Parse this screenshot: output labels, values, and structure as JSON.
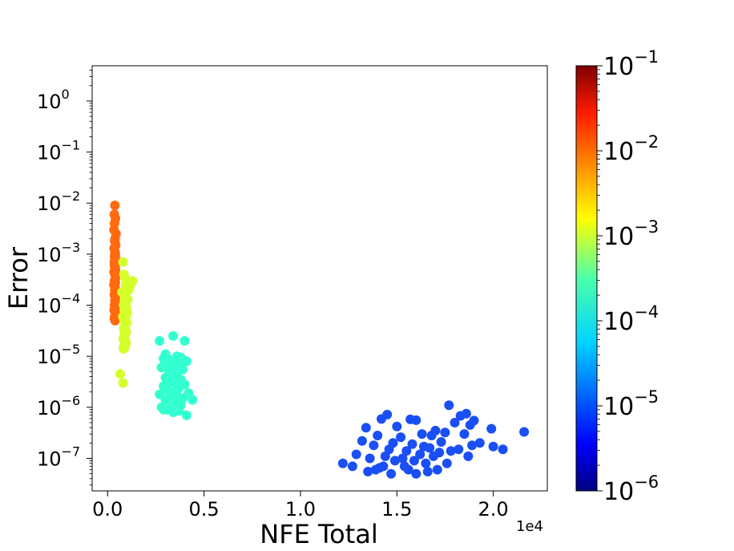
{
  "chart_data": {
    "type": "scatter",
    "xlabel": "NFE Total",
    "ylabel": "Error",
    "x_offset_label": "1e4",
    "xlim": [
      -0.08,
      2.28
    ],
    "ylim": [
      2.31e-08,
      4.9
    ],
    "yscale": "log",
    "grid": false,
    "x_ticks": [
      {
        "value": 0.0,
        "label": "0.0"
      },
      {
        "value": 0.5,
        "label": "0.5"
      },
      {
        "value": 1.0,
        "label": "1.0"
      },
      {
        "value": 1.5,
        "label": "1.5"
      },
      {
        "value": 2.0,
        "label": "2.0"
      }
    ],
    "y_ticks": [
      {
        "exp": 0,
        "base": "10",
        "sup": "0"
      },
      {
        "exp": -1,
        "base": "10",
        "sup": "−1"
      },
      {
        "exp": -2,
        "base": "10",
        "sup": "−2"
      },
      {
        "exp": -3,
        "base": "10",
        "sup": "−3"
      },
      {
        "exp": -4,
        "base": "10",
        "sup": "−4"
      },
      {
        "exp": -5,
        "base": "10",
        "sup": "−5"
      },
      {
        "exp": -6,
        "base": "10",
        "sup": "−6"
      },
      {
        "exp": -7,
        "base": "10",
        "sup": "−7"
      }
    ],
    "colorbar": {
      "scale": "log",
      "range": [
        1e-06,
        0.1
      ],
      "colormap": "jet",
      "ticks": [
        {
          "exp": -1,
          "base": "10",
          "sup": "−1"
        },
        {
          "exp": -2,
          "base": "10",
          "sup": "−2"
        },
        {
          "exp": -3,
          "base": "10",
          "sup": "−3"
        },
        {
          "exp": -4,
          "base": "10",
          "sup": "−4"
        },
        {
          "exp": -5,
          "base": "10",
          "sup": "−5"
        },
        {
          "exp": -6,
          "base": "10",
          "sup": "−6"
        }
      ]
    },
    "series": [
      {
        "color_value": 0.01,
        "color": "#ff6a10",
        "x": [
          0.038,
          0.035,
          0.041,
          0.036,
          0.033,
          0.044,
          0.039,
          0.037,
          0.042,
          0.034,
          0.038,
          0.04,
          0.036,
          0.043,
          0.035,
          0.039,
          0.037,
          0.041,
          0.034,
          0.038,
          0.042,
          0.036,
          0.04,
          0.033,
          0.039,
          0.037,
          0.044,
          0.035,
          0.041,
          0.038,
          0.036,
          0.04,
          0.034,
          0.042,
          0.037,
          0.039,
          0.035,
          0.041,
          0.038,
          0.036
        ],
        "y": [
          0.009,
          0.006,
          0.005,
          0.004,
          0.003,
          0.0025,
          0.002,
          0.0018,
          0.0015,
          0.0013,
          0.0011,
          0.001,
          0.0009,
          0.0008,
          0.0007,
          0.0006,
          0.00055,
          0.0005,
          0.00045,
          0.0004,
          0.00035,
          0.0003,
          0.00028,
          0.00025,
          0.00022,
          0.0002,
          0.00018,
          0.00016,
          0.00014,
          0.00012,
          0.0001,
          9e-05,
          8e-05,
          7e-05,
          6e-05,
          5e-05,
          5.5e-05,
          6.5e-05,
          0.00015,
          0.0006
        ]
      },
      {
        "color_value": 0.001,
        "color": "#d4ff2a",
        "x": [
          0.08,
          0.085,
          0.09,
          0.1,
          0.095,
          0.11,
          0.075,
          0.088,
          0.105,
          0.092,
          0.083,
          0.098,
          0.087,
          0.102,
          0.079,
          0.094,
          0.086,
          0.099,
          0.091,
          0.084,
          0.097,
          0.089,
          0.081,
          0.093,
          0.096,
          0.085,
          0.09,
          0.082,
          0.088,
          0.095,
          0.13,
          0.12,
          0.065,
          0.08,
          0.087,
          0.092
        ],
        "y": [
          0.0007,
          0.0004,
          0.00035,
          0.0003,
          0.00025,
          0.0002,
          0.00018,
          0.00015,
          0.00013,
          0.00012,
          0.0001,
          9e-05,
          8e-05,
          7e-05,
          6e-05,
          5.5e-05,
          5e-05,
          4.5e-05,
          4e-05,
          3.5e-05,
          3e-05,
          2.5e-05,
          2.2e-05,
          2e-05,
          1.8e-05,
          1.6e-05,
          1.5e-05,
          1.4e-05,
          0.00012,
          0.00022,
          0.0003,
          0.00025,
          4.5e-06,
          3e-06,
          2.8e-05,
          0.00016
        ]
      },
      {
        "color_value": 0.0001,
        "color": "#33ffd0",
        "x": [
          0.34,
          0.27,
          0.4,
          0.3,
          0.36,
          0.38,
          0.29,
          0.33,
          0.41,
          0.35,
          0.31,
          0.37,
          0.28,
          0.39,
          0.32,
          0.34,
          0.36,
          0.3,
          0.38,
          0.33,
          0.35,
          0.4,
          0.29,
          0.37,
          0.31,
          0.34,
          0.42,
          0.27,
          0.36,
          0.32,
          0.39,
          0.3,
          0.35,
          0.33,
          0.38,
          0.28,
          0.44,
          0.31,
          0.37,
          0.34,
          0.29,
          0.36,
          0.41,
          0.32,
          0.35,
          0.38,
          0.3,
          0.33
        ],
        "y": [
          2.5e-05,
          2e-05,
          2e-05,
          1.1e-05,
          1e-05,
          9.5e-06,
          9e-06,
          8.5e-06,
          8e-06,
          7.5e-06,
          7e-06,
          6.5e-06,
          6e-06,
          5.5e-06,
          5e-06,
          4.5e-06,
          4e-06,
          3.8e-06,
          3.5e-06,
          3.2e-06,
          3e-06,
          2.8e-06,
          2.6e-06,
          2.4e-06,
          2.2e-06,
          2e-06,
          1.9e-06,
          1.8e-06,
          1.7e-06,
          1.6e-06,
          1.5e-06,
          1.4e-06,
          1.3e-06,
          1.2e-06,
          1.1e-06,
          1e-06,
          1.4e-06,
          9e-07,
          8.5e-07,
          8e-07,
          9e-07,
          1.2e-06,
          7e-07,
          4e-06,
          5e-06,
          3e-06,
          7.5e-06,
          6e-06
        ]
      },
      {
        "color_value": 1e-05,
        "color": "#1a4ff5",
        "x": [
          1.77,
          1.86,
          1.45,
          1.83,
          1.9,
          1.99,
          1.34,
          1.57,
          1.42,
          1.6,
          1.8,
          1.88,
          1.5,
          1.7,
          2.16,
          1.4,
          1.63,
          1.75,
          1.85,
          1.52,
          1.68,
          1.32,
          1.93,
          1.48,
          1.58,
          1.73,
          1.89,
          1.38,
          1.64,
          1.82,
          1.46,
          1.55,
          1.67,
          1.78,
          1.29,
          1.44,
          1.62,
          1.72,
          2.0,
          1.36,
          1.53,
          1.69,
          2.05,
          1.27,
          1.49,
          1.59,
          1.76,
          1.87,
          1.43,
          1.65,
          1.39,
          1.56,
          1.71,
          1.22,
          1.47,
          1.6,
          1.35,
          1.54,
          1.41,
          1.66
        ],
        "y": [
          1.1e-06,
          7.5e-07,
          7.2e-07,
          6.8e-07,
          5.5e-07,
          3.8e-07,
          4e-07,
          5.8e-07,
          5.9e-07,
          5.6e-07,
          5e-07,
          4.5e-07,
          4.2e-07,
          3.5e-07,
          3.3e-07,
          2.8e-07,
          3e-07,
          3.2e-07,
          3e-07,
          2.6e-07,
          2.8e-07,
          2.2e-07,
          2e-07,
          2e-07,
          1.9e-07,
          2.1e-07,
          1.8e-07,
          1.8e-07,
          1.7e-07,
          1.5e-07,
          1.5e-07,
          1.4e-07,
          1.6e-07,
          1.4e-07,
          1.2e-07,
          1.1e-07,
          1.2e-07,
          1.3e-07,
          1.7e-07,
          1e-07,
          1e-07,
          1.1e-07,
          1.5e-07,
          7e-08,
          9e-08,
          9e-08,
          8e-08,
          1.1e-07,
          7e-08,
          8e-08,
          6e-08,
          6e-08,
          6e-08,
          8e-08,
          5e-08,
          5e-08,
          5.5e-08,
          7e-08,
          6.5e-08,
          5.5e-08
        ]
      }
    ]
  }
}
